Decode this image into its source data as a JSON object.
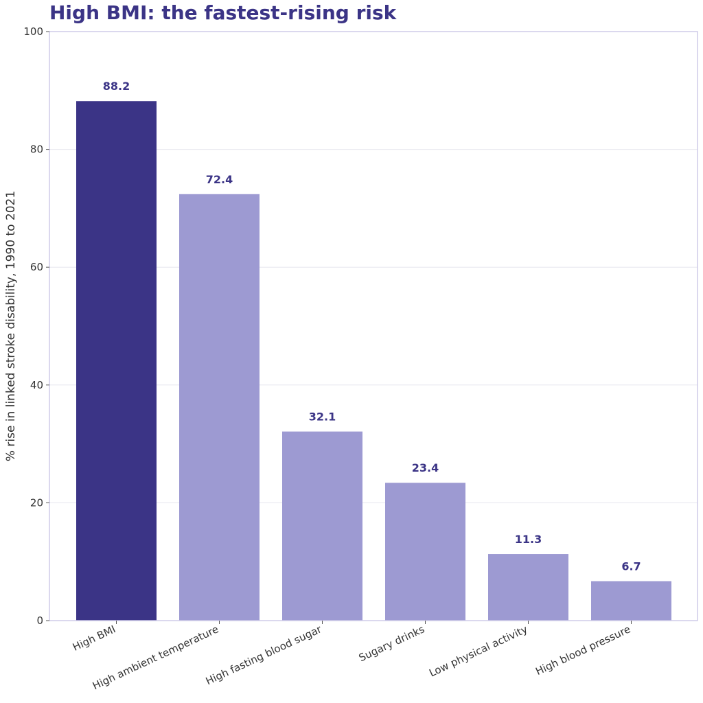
{
  "chart_data": {
    "type": "bar",
    "title": "High BMI: the fastest-rising risk",
    "xlabel": "",
    "ylabel": "% rise in linked stroke disability, 1990 to 2021",
    "categories": [
      "High BMI",
      "High ambient temperature",
      "High fasting blood sugar",
      "Sugary drinks",
      "Low physical activity",
      "High blood pressure"
    ],
    "values": [
      88.2,
      72.4,
      32.1,
      23.4,
      11.3,
      6.7
    ],
    "data_labels": [
      "88.2",
      "72.4",
      "32.1",
      "23.4",
      "11.3",
      "6.7"
    ],
    "yticks": [
      0,
      20,
      40,
      60,
      80,
      100
    ],
    "ylim": [
      0,
      100
    ],
    "grid": true,
    "legend": "none",
    "colors": {
      "highlight": "#3b3486",
      "bar": "#9d9ad2",
      "title": "#3b3486",
      "frame": "#cfcbe8",
      "grid": "#e6e6ee"
    },
    "highlight_index": 0
  }
}
